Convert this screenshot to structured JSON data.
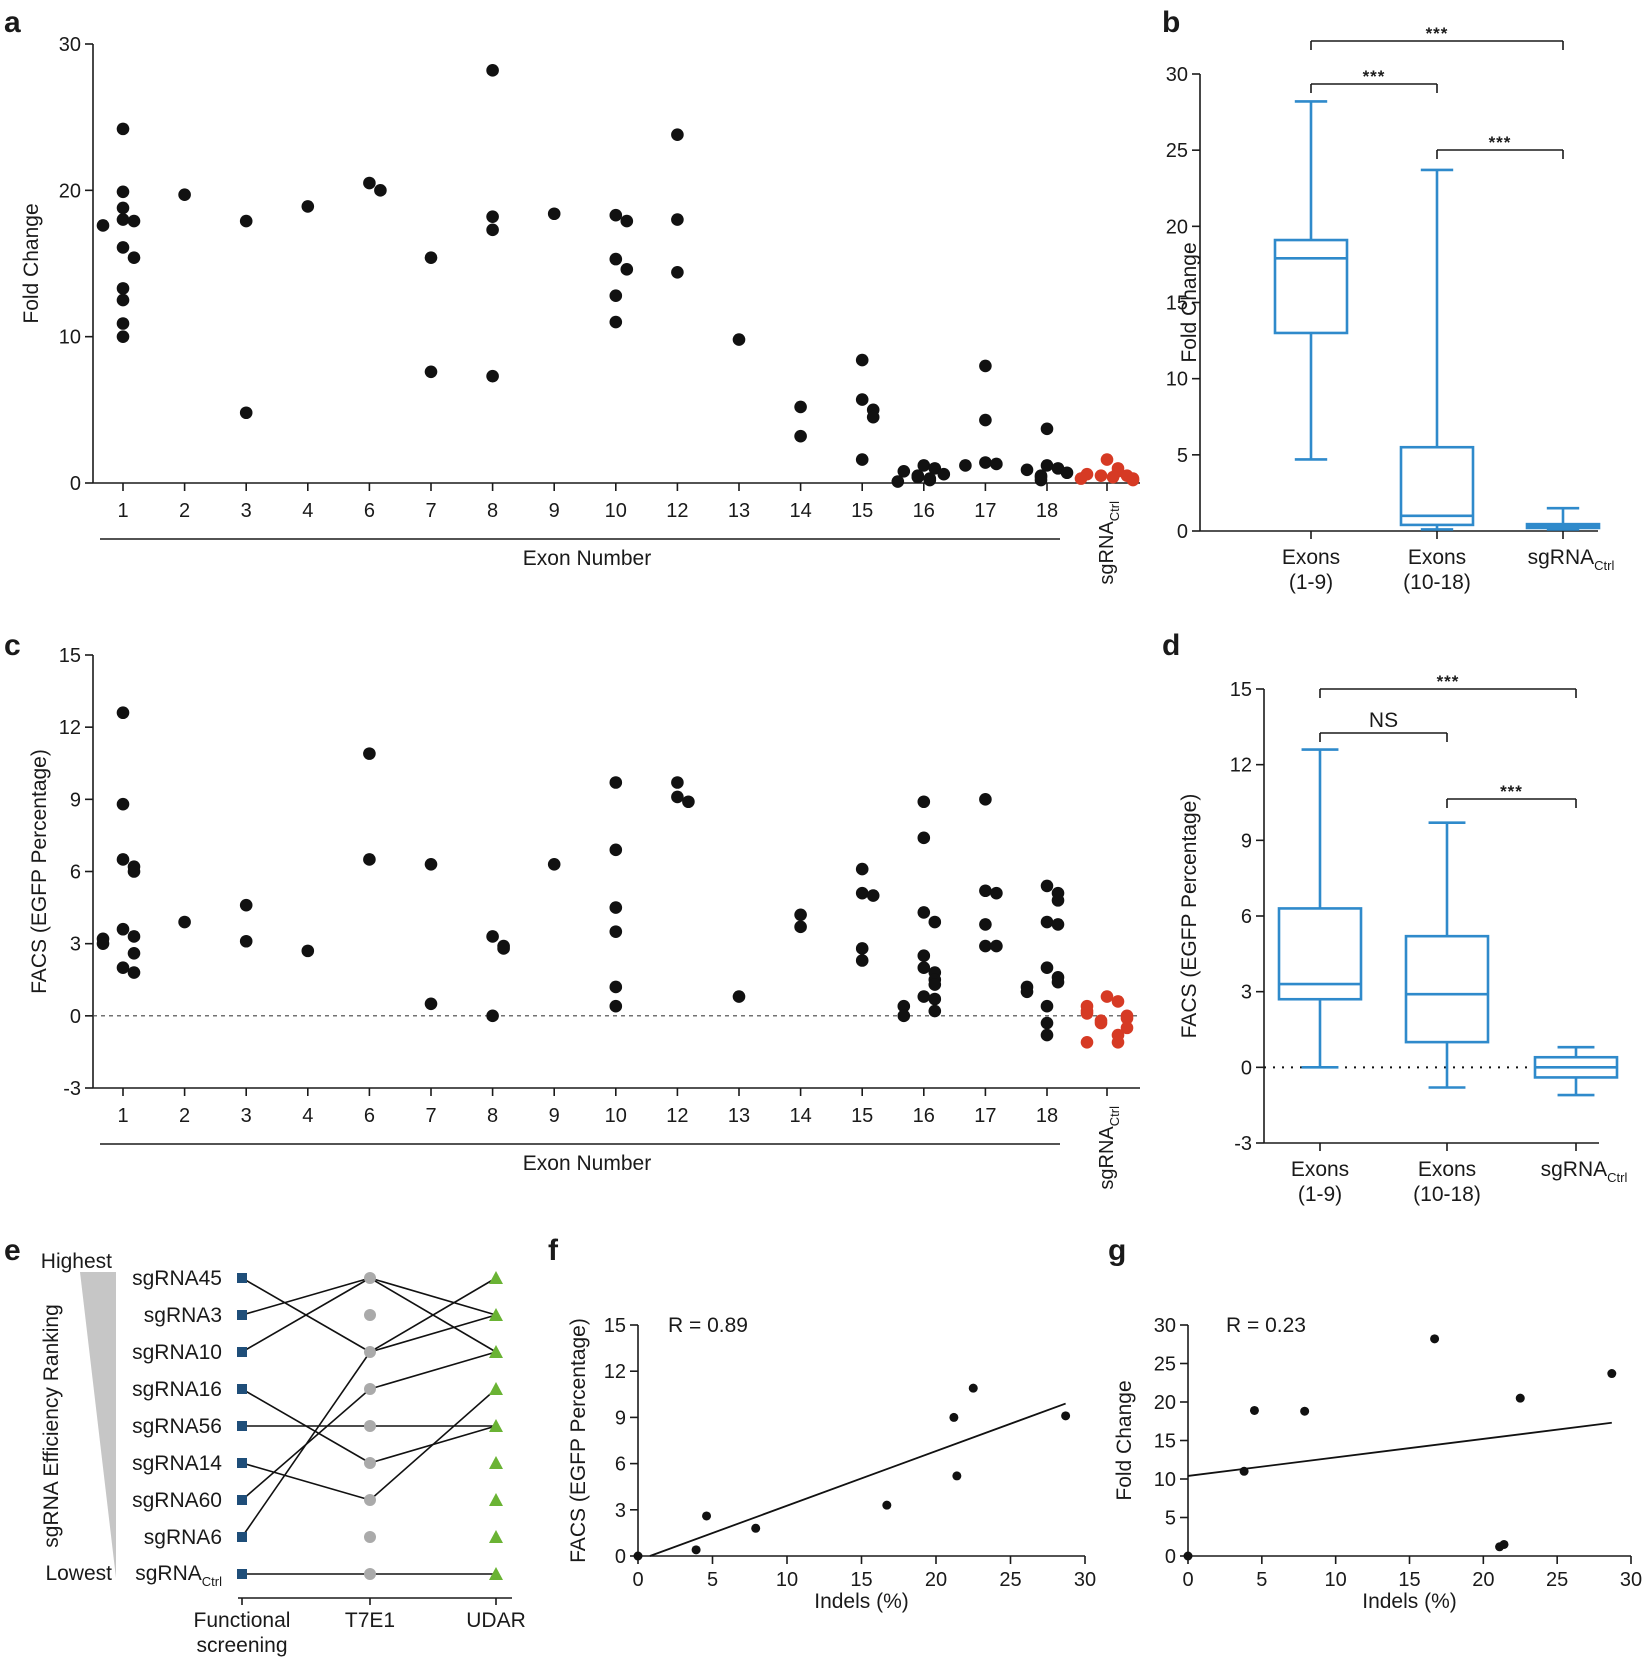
{
  "colors": {
    "black": "#111111",
    "red": "#d63a24",
    "blue": "#2f8acb",
    "navy": "#1f4e79",
    "grey": "#aaaaaa",
    "green": "#6ab334"
  },
  "panel_labels": {
    "a": "a",
    "b": "b",
    "c": "c",
    "d": "d",
    "e": "e",
    "f": "f",
    "g": "g"
  },
  "chart_data": [
    {
      "id": "a",
      "type": "scatter",
      "title": "",
      "ylabel": "Fold Change",
      "xlabel": "Exon Number",
      "ylim": [
        0,
        30
      ],
      "yticks": [
        "0",
        "10",
        "20",
        "30"
      ],
      "categories": [
        "1",
        "2",
        "3",
        "4",
        "6",
        "7",
        "8",
        "9",
        "10",
        "12",
        "13",
        "14",
        "15",
        "16",
        "17",
        "18"
      ],
      "control_label": {
        "base": "sgRNA",
        "sub": "Ctrl"
      },
      "series": [
        {
          "name": "Exons",
          "color": "black",
          "points": [
            [
              1,
              24.2
            ],
            [
              1,
              19.9
            ],
            [
              1,
              18.8
            ],
            [
              1,
              18.0
            ],
            [
              1,
              17.9
            ],
            [
              1,
              17.6
            ],
            [
              1,
              16.1
            ],
            [
              1,
              15.4
            ],
            [
              1,
              13.3
            ],
            [
              1,
              12.5
            ],
            [
              1,
              10.9
            ],
            [
              1,
              10.0
            ],
            [
              2,
              19.7
            ],
            [
              3,
              17.9
            ],
            [
              3,
              4.8
            ],
            [
              4,
              18.9
            ],
            [
              6,
              20.0
            ],
            [
              6,
              20.5
            ],
            [
              7,
              15.4
            ],
            [
              7,
              7.6
            ],
            [
              8,
              28.2
            ],
            [
              8,
              18.2
            ],
            [
              8,
              17.3
            ],
            [
              8,
              7.3
            ],
            [
              9,
              18.4
            ],
            [
              10,
              18.3
            ],
            [
              10,
              17.9
            ],
            [
              10,
              15.3
            ],
            [
              10,
              14.6
            ],
            [
              10,
              12.8
            ],
            [
              10,
              11.0
            ],
            [
              12,
              23.8
            ],
            [
              12,
              18.0
            ],
            [
              12,
              14.4
            ],
            [
              13,
              9.8
            ],
            [
              14,
              5.2
            ],
            [
              14,
              3.2
            ],
            [
              15,
              8.4
            ],
            [
              15,
              5.7
            ],
            [
              15,
              5.0
            ],
            [
              15,
              4.5
            ],
            [
              15,
              1.6
            ],
            [
              16,
              1.2
            ],
            [
              16,
              1.0
            ],
            [
              16,
              0.8
            ],
            [
              16,
              0.6
            ],
            [
              16,
              0.5
            ],
            [
              16,
              0.4
            ],
            [
              16,
              0.3
            ],
            [
              16,
              0.2
            ],
            [
              16,
              0.1
            ],
            [
              17,
              8.0
            ],
            [
              17,
              4.3
            ],
            [
              17,
              1.4
            ],
            [
              17,
              1.3
            ],
            [
              17,
              1.2
            ],
            [
              18,
              3.7
            ],
            [
              18,
              1.2
            ],
            [
              18,
              1.0
            ],
            [
              18,
              0.9
            ],
            [
              18,
              0.7
            ],
            [
              18,
              0.5
            ],
            [
              18,
              0.4
            ],
            [
              18,
              0.2
            ]
          ]
        },
        {
          "name": "sgRNACtrl",
          "color": "red",
          "points": [
            [
              "C",
              1.6
            ],
            [
              "C",
              1.0
            ],
            [
              "C",
              0.8
            ],
            [
              "C",
              0.6
            ],
            [
              "C",
              0.5
            ],
            [
              "C",
              0.5
            ],
            [
              "C",
              0.4
            ],
            [
              "C",
              0.3
            ],
            [
              "C",
              0.3
            ],
            [
              "C",
              0.2
            ]
          ]
        }
      ]
    },
    {
      "id": "b",
      "type": "box",
      "ylabel": "Fold Change",
      "ylim": [
        0,
        30
      ],
      "yticks": [
        "0",
        "5",
        "10",
        "15",
        "20",
        "25",
        "30"
      ],
      "groups": [
        {
          "line1": "Exons",
          "line2": "(1-9)",
          "min": 4.7,
          "q1": 13.0,
          "median": 17.9,
          "q3": 19.1,
          "max": 28.2
        },
        {
          "line1": "Exons",
          "line2": "(10-18)",
          "min": 0.1,
          "q1": 0.4,
          "median": 1.0,
          "q3": 5.5,
          "max": 23.7
        },
        {
          "base": "sgRNA",
          "sub": "Ctrl",
          "min": 0.1,
          "q1": 0.2,
          "median": 0.35,
          "q3": 0.45,
          "max": 1.5
        }
      ],
      "significance": [
        {
          "from": 0,
          "to": 1,
          "label": "***"
        },
        {
          "from": 1,
          "to": 2,
          "label": "***"
        },
        {
          "from": 0,
          "to": 2,
          "label": "***"
        }
      ]
    },
    {
      "id": "c",
      "type": "scatter",
      "title": "",
      "ylabel": "FACS (EGFP Percentage)",
      "xlabel": "Exon Number",
      "ylim": [
        -3,
        15
      ],
      "yticks": [
        "-3",
        "0",
        "3",
        "6",
        "9",
        "12",
        "15"
      ],
      "categories": [
        "1",
        "2",
        "3",
        "4",
        "6",
        "7",
        "8",
        "9",
        "10",
        "12",
        "13",
        "14",
        "15",
        "16",
        "17",
        "18"
      ],
      "control_label": {
        "base": "sgRNA",
        "sub": "Ctrl"
      },
      "series": [
        {
          "name": "Exons",
          "color": "black",
          "points": [
            [
              1,
              12.6
            ],
            [
              1,
              8.8
            ],
            [
              1,
              6.5
            ],
            [
              1,
              6.2
            ],
            [
              1,
              6.0
            ],
            [
              1,
              3.6
            ],
            [
              1,
              3.3
            ],
            [
              1,
              3.2
            ],
            [
              1,
              3.0
            ],
            [
              1,
              2.6
            ],
            [
              1,
              2.0
            ],
            [
              1,
              1.8
            ],
            [
              2,
              3.9
            ],
            [
              3,
              4.6
            ],
            [
              3,
              3.1
            ],
            [
              4,
              2.7
            ],
            [
              6,
              10.9
            ],
            [
              6,
              6.5
            ],
            [
              7,
              6.3
            ],
            [
              7,
              0.5
            ],
            [
              8,
              3.3
            ],
            [
              8,
              2.9
            ],
            [
              8,
              2.8
            ],
            [
              8,
              0.0
            ],
            [
              9,
              6.3
            ],
            [
              10,
              9.7
            ],
            [
              10,
              6.9
            ],
            [
              10,
              4.5
            ],
            [
              10,
              3.5
            ],
            [
              10,
              1.2
            ],
            [
              10,
              0.4
            ],
            [
              12,
              9.7
            ],
            [
              12,
              9.1
            ],
            [
              12,
              8.9
            ],
            [
              13,
              0.8
            ],
            [
              14,
              4.2
            ],
            [
              14,
              3.7
            ],
            [
              15,
              6.1
            ],
            [
              15,
              5.1
            ],
            [
              15,
              5.0
            ],
            [
              15,
              2.8
            ],
            [
              15,
              2.3
            ],
            [
              16,
              8.9
            ],
            [
              16,
              7.4
            ],
            [
              16,
              4.3
            ],
            [
              16,
              3.9
            ],
            [
              16,
              2.5
            ],
            [
              16,
              2.0
            ],
            [
              16,
              1.8
            ],
            [
              16,
              1.5
            ],
            [
              16,
              1.3
            ],
            [
              16,
              0.8
            ],
            [
              16,
              0.7
            ],
            [
              16,
              0.4
            ],
            [
              16,
              0.2
            ],
            [
              16,
              0.0
            ],
            [
              17,
              9.0
            ],
            [
              17,
              5.2
            ],
            [
              17,
              5.1
            ],
            [
              17,
              3.8
            ],
            [
              17,
              2.9
            ],
            [
              17,
              2.9
            ],
            [
              18,
              5.4
            ],
            [
              18,
              5.1
            ],
            [
              18,
              4.8
            ],
            [
              18,
              3.9
            ],
            [
              18,
              3.8
            ],
            [
              18,
              2.0
            ],
            [
              18,
              1.6
            ],
            [
              18,
              1.4
            ],
            [
              18,
              1.2
            ],
            [
              18,
              1.0
            ],
            [
              18,
              0.4
            ],
            [
              18,
              -0.3
            ],
            [
              18,
              -0.8
            ]
          ]
        },
        {
          "name": "sgRNACtrl",
          "color": "red",
          "points": [
            [
              "C",
              0.8
            ],
            [
              "C",
              0.6
            ],
            [
              "C",
              0.4
            ],
            [
              "C",
              0.2
            ],
            [
              "C",
              0.1
            ],
            [
              "C",
              0.0
            ],
            [
              "C",
              -0.1
            ],
            [
              "C",
              -0.2
            ],
            [
              "C",
              -0.3
            ],
            [
              "C",
              -0.5
            ],
            [
              "C",
              -0.8
            ],
            [
              "C",
              -1.1
            ],
            [
              "C",
              -1.1
            ]
          ]
        }
      ],
      "reference_line": 0
    },
    {
      "id": "d",
      "type": "box",
      "ylabel": "FACS (EGFP Percentage)",
      "ylim": [
        -3,
        15
      ],
      "yticks": [
        "-3",
        "0",
        "3",
        "6",
        "9",
        "12",
        "15"
      ],
      "groups": [
        {
          "line1": "Exons",
          "line2": "(1-9)",
          "min": 0.0,
          "q1": 2.7,
          "median": 3.3,
          "q3": 6.3,
          "max": 12.6
        },
        {
          "line1": "Exons",
          "line2": "(10-18)",
          "min": -0.8,
          "q1": 1.0,
          "median": 2.9,
          "q3": 5.2,
          "max": 9.7
        },
        {
          "base": "sgRNA",
          "sub": "Ctrl",
          "min": -1.1,
          "q1": -0.4,
          "median": 0.0,
          "q3": 0.4,
          "max": 0.8
        }
      ],
      "reference_line": 0,
      "significance": [
        {
          "from": 0,
          "to": 1,
          "label": "NS"
        },
        {
          "from": 1,
          "to": 2,
          "label": "***"
        },
        {
          "from": 0,
          "to": 2,
          "label": "***"
        }
      ]
    },
    {
      "id": "e",
      "type": "ranking",
      "ylabel": "sgRNA Efficiency Ranking",
      "top_label": "Highest",
      "bottom_label": "Lowest",
      "rows": [
        "sgRNA45",
        "sgRNA3",
        "sgRNA10",
        "sgRNA16",
        "sgRNA56",
        "sgRNA14",
        "sgRNA60",
        "sgRNA6"
      ],
      "control_row": {
        "base": "sgRNA",
        "sub": "Ctrl"
      },
      "methods": [
        {
          "line1": "Functional",
          "line2": "screening"
        },
        {
          "line1": "T7E1",
          "line2": ""
        },
        {
          "line1": "UDAR",
          "line2": ""
        }
      ],
      "connections": [
        [
          [
            0,
            2
          ],
          [
            2,
            1
          ]
        ],
        [
          [
            1,
            0
          ],
          [
            0,
            2
          ]
        ],
        [
          [
            2,
            0
          ],
          [
            0,
            1
          ]
        ],
        [
          [
            3,
            5
          ],
          [
            5,
            4
          ]
        ],
        [
          [
            4,
            4
          ],
          [
            4,
            4
          ]
        ],
        [
          [
            5,
            6
          ],
          [
            6,
            3
          ]
        ],
        [
          [
            6,
            3
          ],
          [
            3,
            2
          ]
        ],
        [
          [
            7,
            2
          ],
          [
            2,
            0
          ]
        ],
        [
          [
            8,
            8
          ],
          [
            8,
            8
          ]
        ]
      ]
    },
    {
      "id": "f",
      "type": "scatter",
      "ylabel": "FACS (EGFP Percentage)",
      "xlabel": "Indels (%)",
      "xlim": [
        0,
        30
      ],
      "ylim": [
        0,
        15
      ],
      "xticks": [
        "0",
        "5",
        "10",
        "15",
        "20",
        "25",
        "30"
      ],
      "yticks": [
        "0",
        "3",
        "6",
        "9",
        "12",
        "15"
      ],
      "annotation": "R = 0.89",
      "points": [
        [
          0,
          0
        ],
        [
          3.9,
          0.4
        ],
        [
          4.6,
          2.6
        ],
        [
          7.9,
          1.8
        ],
        [
          16.7,
          3.3
        ],
        [
          21.2,
          9.0
        ],
        [
          21.4,
          5.2
        ],
        [
          22.5,
          10.9
        ],
        [
          28.7,
          9.1
        ]
      ],
      "fit_line": [
        [
          0.8,
          0
        ],
        [
          28.7,
          9.9
        ]
      ]
    },
    {
      "id": "g",
      "type": "scatter",
      "ylabel": "Fold Change",
      "xlabel": "Indels (%)",
      "xlim": [
        0,
        30
      ],
      "ylim": [
        0,
        30
      ],
      "xticks": [
        "0",
        "5",
        "10",
        "15",
        "20",
        "25",
        "30"
      ],
      "yticks": [
        "0",
        "5",
        "10",
        "15",
        "20",
        "25",
        "30"
      ],
      "annotation": "R = 0.23",
      "points": [
        [
          0,
          0
        ],
        [
          3.8,
          11.0
        ],
        [
          4.5,
          18.9
        ],
        [
          7.9,
          18.8
        ],
        [
          16.7,
          28.2
        ],
        [
          21.1,
          1.2
        ],
        [
          21.4,
          1.5
        ],
        [
          22.5,
          20.5
        ],
        [
          28.7,
          23.7
        ]
      ],
      "fit_line": [
        [
          0,
          10.4
        ],
        [
          28.7,
          17.3
        ]
      ]
    }
  ]
}
